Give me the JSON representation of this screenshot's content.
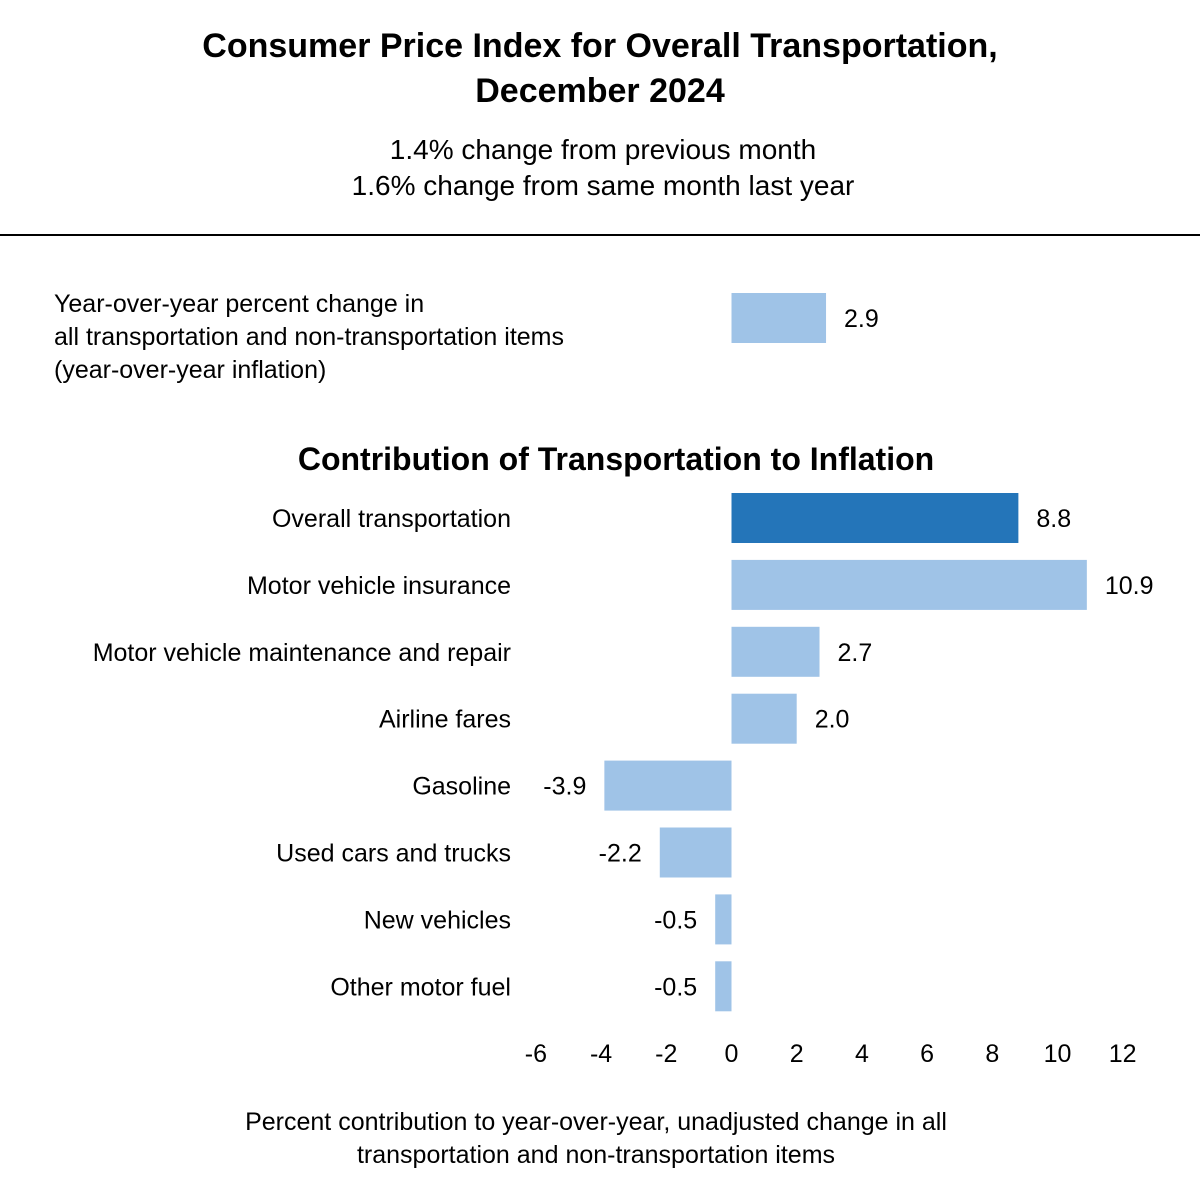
{
  "chart_data": {
    "type": "bar",
    "orientation": "horizontal",
    "title": [
      "Consumer Price Index for Overall Transportation,",
      "December 2024"
    ],
    "subtitle": [
      "1.4% change from previous month",
      "1.6% change from same month last year"
    ],
    "reference": {
      "label": [
        "Year-over-year percent change in",
        "all transportation and non-transportation items",
        "(year-over-year inflation)"
      ],
      "value": 2.9,
      "value_label": "2.9"
    },
    "section_title": "Contribution of Transportation to Inflation",
    "categories": [
      "Overall transportation",
      "Motor vehicle insurance",
      "Motor vehicle maintenance and repair",
      "Airline fares",
      "Gasoline",
      "Used cars and trucks",
      "New vehicles",
      "Other motor fuel"
    ],
    "values": [
      8.8,
      10.9,
      2.7,
      2.0,
      -3.9,
      -2.2,
      -0.5,
      -0.5
    ],
    "value_labels": [
      "8.8",
      "10.9",
      "2.7",
      "2.0",
      "-3.9",
      "-2.2",
      "-0.5",
      "-0.5"
    ],
    "highlight_index": 0,
    "xlim": [
      -6,
      12
    ],
    "xticks": [
      -6,
      -4,
      -2,
      0,
      2,
      4,
      6,
      8,
      10,
      12
    ],
    "xtick_labels": [
      "-6",
      "-4",
      "-2",
      "0",
      "2",
      "4",
      "6",
      "8",
      "10",
      "12"
    ],
    "xlabel": [
      "Percent contribution to year-over-year, unadjusted change in all",
      "transportation and non-transportation items"
    ],
    "grid": false,
    "colors": {
      "highlight": "#2475b9",
      "bar": "#9fc3e7",
      "rule": "#000000"
    }
  }
}
